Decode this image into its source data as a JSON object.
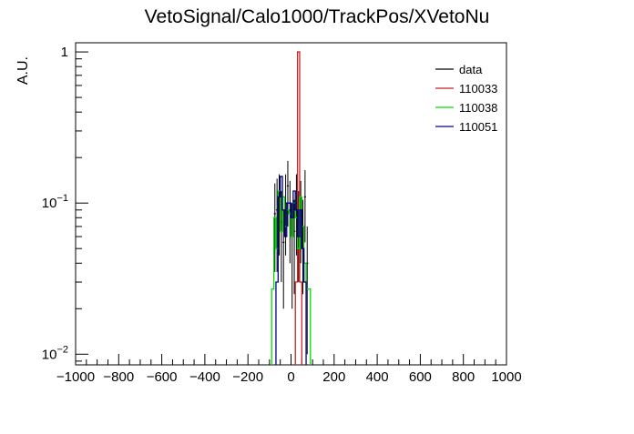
{
  "chart_data": {
    "type": "line",
    "title": "VetoSignal/Calo1000/TrackPos/XVetoNu",
    "xlabel": "",
    "ylabel": "A.U.",
    "xlim": [
      -1000,
      1000
    ],
    "ylim": [
      0.0085,
      1.15
    ],
    "yscale": "log",
    "grid": false,
    "legend_position": "top-right",
    "x_ticks": [
      -1000,
      -800,
      -600,
      -400,
      -200,
      0,
      200,
      400,
      600,
      800,
      1000
    ],
    "y_ticks": [
      {
        "value": 0.01,
        "base": "10",
        "exp": "−2"
      },
      {
        "value": 0.1,
        "base": "10",
        "exp": "−1"
      },
      {
        "value": 1,
        "label": "1"
      }
    ],
    "bin_width": 10,
    "series": [
      {
        "name": "data",
        "color": "#000000",
        "style": "points",
        "points": [
          {
            "x": -75,
            "y": 0.085,
            "err": 0.05
          },
          {
            "x": -65,
            "y": 0.09,
            "err": 0.055
          },
          {
            "x": -55,
            "y": 0.1,
            "err": 0.055
          },
          {
            "x": -45,
            "y": 0.075,
            "err": 0.045
          },
          {
            "x": -35,
            "y": 0.055,
            "err": 0.035
          },
          {
            "x": -25,
            "y": 0.1,
            "err": 0.055
          },
          {
            "x": -15,
            "y": 0.13,
            "err": 0.06
          },
          {
            "x": -5,
            "y": 0.09,
            "err": 0.05
          },
          {
            "x": 5,
            "y": 0.06,
            "err": 0.04
          },
          {
            "x": 15,
            "y": 0.065,
            "err": 0.04
          },
          {
            "x": 25,
            "y": 0.1,
            "err": 0.055
          },
          {
            "x": 35,
            "y": 0.075,
            "err": 0.045
          },
          {
            "x": 45,
            "y": 0.09,
            "err": 0.05
          },
          {
            "x": 55,
            "y": 0.065,
            "err": 0.04
          },
          {
            "x": 65,
            "y": 0.11,
            "err": 0.055
          },
          {
            "x": 75,
            "y": 0.04,
            "err": 0.03
          }
        ]
      },
      {
        "name": "110033",
        "color": "#cc2222",
        "style": "step",
        "bins": [
          [
            20,
            0.03
          ],
          [
            30,
            1.0
          ],
          [
            40,
            0.03
          ]
        ]
      },
      {
        "name": "110038",
        "color": "#00dd00",
        "style": "step",
        "bins": [
          [
            -90,
            0.027
          ],
          [
            -80,
            0.08
          ],
          [
            -70,
            0.05
          ],
          [
            -60,
            0.12
          ],
          [
            -50,
            0.065
          ],
          [
            -40,
            0.11
          ],
          [
            -30,
            0.07
          ],
          [
            -20,
            0.09
          ],
          [
            -10,
            0.085
          ],
          [
            0,
            0.06
          ],
          [
            10,
            0.1
          ],
          [
            20,
            0.08
          ],
          [
            30,
            0.05
          ],
          [
            40,
            0.11
          ],
          [
            50,
            0.07
          ],
          [
            60,
            0.04
          ],
          [
            70,
            0.027
          ],
          [
            80,
            0.027
          ]
        ]
      },
      {
        "name": "110051",
        "color": "#00008b",
        "style": "step",
        "bins": [
          [
            -70,
            0.03
          ],
          [
            -60,
            0.11
          ],
          [
            -50,
            0.15
          ],
          [
            -40,
            0.09
          ],
          [
            -30,
            0.06
          ],
          [
            -20,
            0.1
          ],
          [
            -10,
            0.1
          ],
          [
            0,
            0.08
          ],
          [
            10,
            0.12
          ],
          [
            20,
            0.09
          ],
          [
            30,
            0.06
          ],
          [
            40,
            0.09
          ],
          [
            50,
            0.05
          ],
          [
            60,
            0.03
          ]
        ]
      }
    ]
  }
}
